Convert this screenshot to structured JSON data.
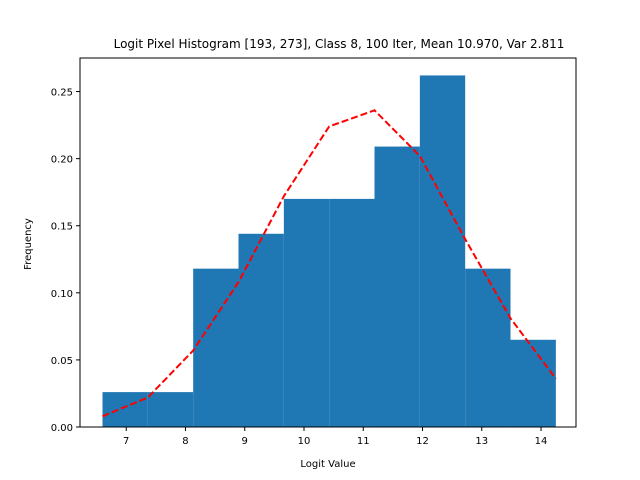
{
  "chart_data": {
    "type": "bar",
    "title": "Logit Pixel Histogram [193, 273], Class 8, 100 Iter, Mean 10.970, Var 2.811",
    "xlabel": "Logit Value",
    "ylabel": "Frequency",
    "xlim": [
      6.22,
      14.59
    ],
    "ylim": [
      0.0,
      0.275
    ],
    "xticks": [
      7,
      8,
      9,
      10,
      11,
      12,
      13,
      14
    ],
    "yticks": [
      0.0,
      0.05,
      0.1,
      0.15,
      0.2,
      0.25
    ],
    "ytick_labels": [
      "0.00",
      "0.05",
      "0.10",
      "0.15",
      "0.20",
      "0.25"
    ],
    "bar_color": "#1f77b4",
    "bin_edges": [
      6.6,
      7.365,
      8.13,
      8.895,
      9.66,
      10.425,
      11.19,
      11.955,
      12.72,
      13.485,
      14.25
    ],
    "values": [
      0.026,
      0.026,
      0.118,
      0.144,
      0.17,
      0.17,
      0.209,
      0.262,
      0.118,
      0.065
    ],
    "series": [
      {
        "type": "line",
        "style": "dashed",
        "color": "#ff0000",
        "x": [
          6.6,
          7.365,
          8.13,
          8.895,
          9.66,
          10.425,
          11.19,
          11.955,
          12.72,
          13.485,
          14.25
        ],
        "y": [
          0.008,
          0.022,
          0.057,
          0.108,
          0.172,
          0.224,
          0.236,
          0.202,
          0.14,
          0.081,
          0.036
        ]
      }
    ]
  }
}
